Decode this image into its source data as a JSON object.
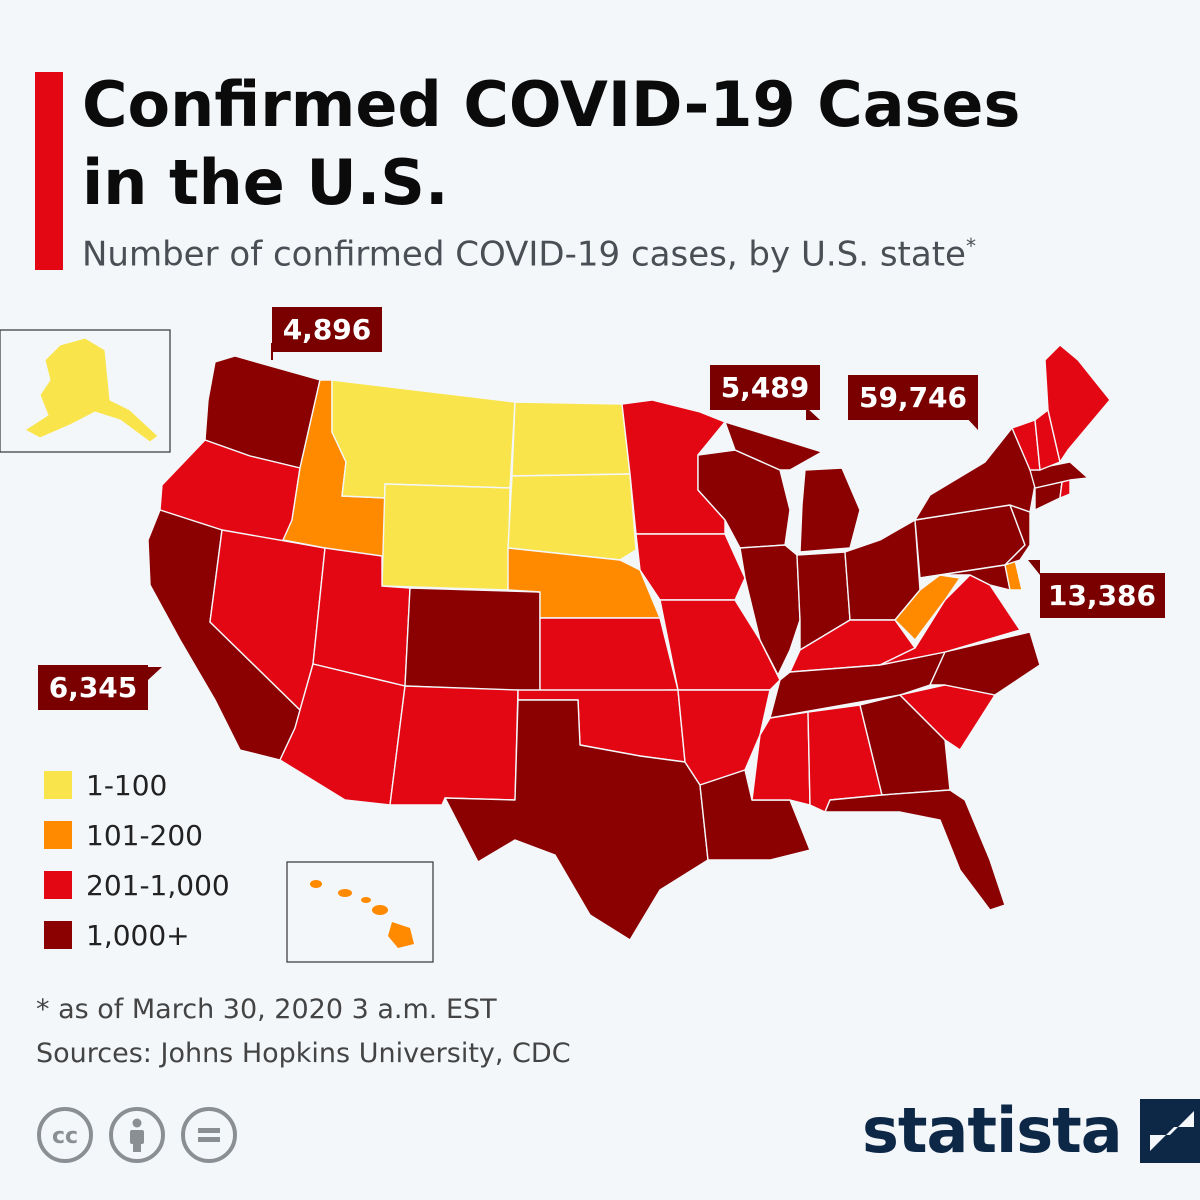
{
  "title_line1": "Confirmed COVID-19 Cases",
  "title_line2": "in the U.S.",
  "subtitle": "Number of confirmed COVID-19 cases, by U.S. state",
  "subtitle_mark": "*",
  "colors": {
    "accent": "#e30613",
    "bucket_1_100": "#f9e54b",
    "bucket_101_200": "#ff8a00",
    "bucket_201_1000": "#e30613",
    "bucket_1000_plus": "#8b0000",
    "callout": "#7a0000",
    "brand": "#0d2746"
  },
  "legend": [
    {
      "label": "1-100",
      "color": "#f9e54b"
    },
    {
      "label": "101-200",
      "color": "#ff8a00"
    },
    {
      "label": "201-1,000",
      "color": "#e30613"
    },
    {
      "label": "1,000+",
      "color": "#8b0000"
    }
  ],
  "callouts": [
    {
      "state": "Washington",
      "value": "4,896"
    },
    {
      "state": "Michigan",
      "value": "5,489"
    },
    {
      "state": "New York",
      "value": "59,746"
    },
    {
      "state": "New Jersey",
      "value": "13,386"
    },
    {
      "state": "California",
      "value": "6,345"
    }
  ],
  "states": [
    {
      "name": "Washington",
      "bucket": "1,000+"
    },
    {
      "name": "Oregon",
      "bucket": "201-1,000"
    },
    {
      "name": "California",
      "bucket": "1,000+"
    },
    {
      "name": "Nevada",
      "bucket": "201-1,000"
    },
    {
      "name": "Idaho",
      "bucket": "101-200"
    },
    {
      "name": "Montana",
      "bucket": "1-100"
    },
    {
      "name": "Wyoming",
      "bucket": "1-100"
    },
    {
      "name": "Utah",
      "bucket": "201-1,000"
    },
    {
      "name": "Arizona",
      "bucket": "201-1,000"
    },
    {
      "name": "Colorado",
      "bucket": "1,000+"
    },
    {
      "name": "New Mexico",
      "bucket": "201-1,000"
    },
    {
      "name": "North Dakota",
      "bucket": "1-100"
    },
    {
      "name": "South Dakota",
      "bucket": "1-100"
    },
    {
      "name": "Nebraska",
      "bucket": "101-200"
    },
    {
      "name": "Kansas",
      "bucket": "201-1,000"
    },
    {
      "name": "Oklahoma",
      "bucket": "201-1,000"
    },
    {
      "name": "Texas",
      "bucket": "1,000+"
    },
    {
      "name": "Minnesota",
      "bucket": "201-1,000"
    },
    {
      "name": "Iowa",
      "bucket": "201-1,000"
    },
    {
      "name": "Missouri",
      "bucket": "201-1,000"
    },
    {
      "name": "Arkansas",
      "bucket": "201-1,000"
    },
    {
      "name": "Louisiana",
      "bucket": "1,000+"
    },
    {
      "name": "Wisconsin",
      "bucket": "1,000+"
    },
    {
      "name": "Illinois",
      "bucket": "1,000+"
    },
    {
      "name": "Michigan",
      "bucket": "1,000+"
    },
    {
      "name": "Indiana",
      "bucket": "1,000+"
    },
    {
      "name": "Ohio",
      "bucket": "1,000+"
    },
    {
      "name": "Kentucky",
      "bucket": "201-1,000"
    },
    {
      "name": "Tennessee",
      "bucket": "1,000+"
    },
    {
      "name": "Mississippi",
      "bucket": "201-1,000"
    },
    {
      "name": "Alabama",
      "bucket": "201-1,000"
    },
    {
      "name": "Georgia",
      "bucket": "1,000+"
    },
    {
      "name": "Florida",
      "bucket": "1,000+"
    },
    {
      "name": "South Carolina",
      "bucket": "201-1,000"
    },
    {
      "name": "North Carolina",
      "bucket": "1,000+"
    },
    {
      "name": "Virginia",
      "bucket": "201-1,000"
    },
    {
      "name": "West Virginia",
      "bucket": "101-200"
    },
    {
      "name": "Pennsylvania",
      "bucket": "1,000+"
    },
    {
      "name": "New York",
      "bucket": "1,000+"
    },
    {
      "name": "New Jersey",
      "bucket": "1,000+"
    },
    {
      "name": "Delaware",
      "bucket": "101-200"
    },
    {
      "name": "Maryland",
      "bucket": "1,000+"
    },
    {
      "name": "Connecticut",
      "bucket": "1,000+"
    },
    {
      "name": "Rhode Island",
      "bucket": "201-1,000"
    },
    {
      "name": "Massachusetts",
      "bucket": "1,000+"
    },
    {
      "name": "Vermont",
      "bucket": "201-1,000"
    },
    {
      "name": "New Hampshire",
      "bucket": "201-1,000"
    },
    {
      "name": "Maine",
      "bucket": "201-1,000"
    },
    {
      "name": "Alaska",
      "bucket": "1-100"
    },
    {
      "name": "Hawaii",
      "bucket": "101-200"
    }
  ],
  "footnote": "* as of March 30, 2020 3 a.m. EST",
  "sources": "Sources: Johns Hopkins University, CDC",
  "license_icons": [
    "creative-commons-icon",
    "attribution-icon",
    "no-derivatives-icon"
  ],
  "brand": "statista"
}
